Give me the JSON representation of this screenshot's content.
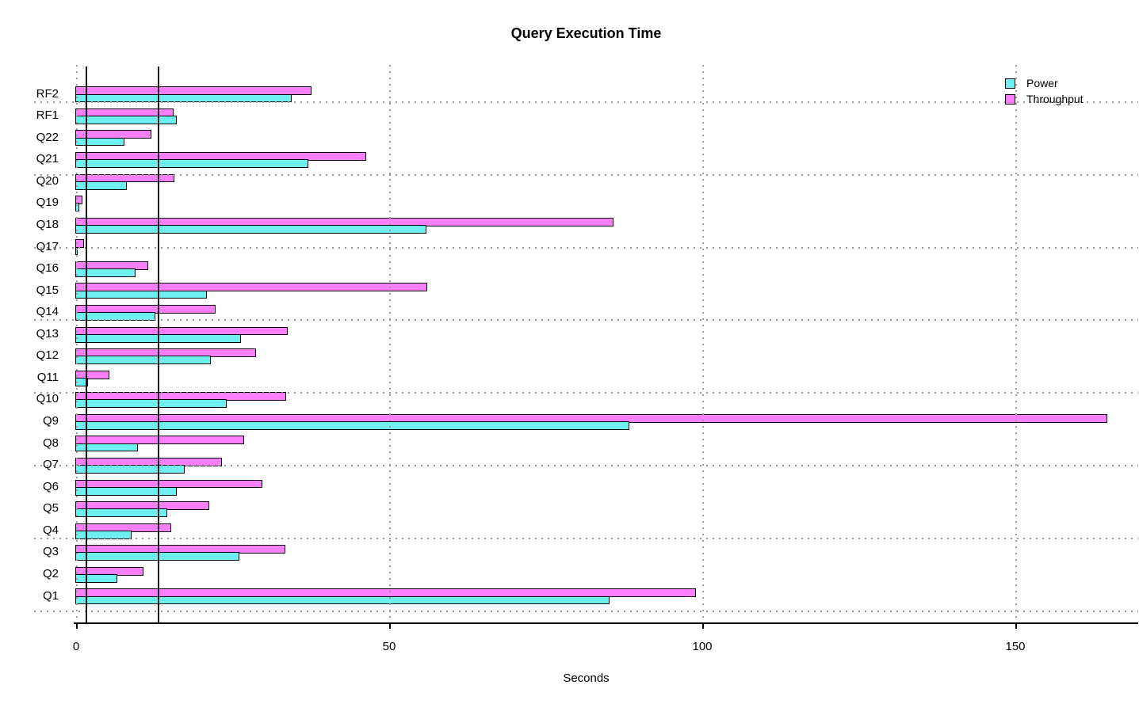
{
  "chart_data": {
    "type": "bar",
    "orientation": "horizontal",
    "title": "Query Execution Time",
    "xlabel": "Seconds",
    "x_tick_values": [
      0,
      50,
      100,
      150
    ],
    "x_tick_labels": [
      "0",
      "50",
      "100",
      "150"
    ],
    "xlim": [
      0,
      169
    ],
    "categories": [
      "RF2",
      "RF1",
      "Q22",
      "Q21",
      "Q20",
      "Q19",
      "Q18",
      "Q17",
      "Q16",
      "Q15",
      "Q14",
      "Q13",
      "Q12",
      "Q11",
      "Q10",
      "Q9",
      "Q8",
      "Q7",
      "Q6",
      "Q5",
      "Q4",
      "Q3",
      "Q2",
      "Q1"
    ],
    "series": [
      {
        "name": "Power",
        "color": "#6FF0F0",
        "values": [
          34.6,
          16.2,
          7.8,
          37.2,
          8.2,
          0.6,
          56.1,
          0.4,
          9.6,
          21.0,
          12.8,
          26.5,
          21.6,
          2.0,
          24.2,
          88.5,
          10.0,
          17.5,
          16.2,
          14.7,
          9.0,
          26.2,
          6.7,
          85.3
        ]
      },
      {
        "name": "Throughput",
        "color": "#FB7EFB",
        "values": [
          37.7,
          15.7,
          12.2,
          46.5,
          15.8,
          1.1,
          85.9,
          1.4,
          11.6,
          56.2,
          22.4,
          33.9,
          28.9,
          5.4,
          33.7,
          164.8,
          27.0,
          23.4,
          29.9,
          21.4,
          15.3,
          33.5,
          10.9,
          99.1
        ]
      }
    ],
    "bar_order_within_group_top_to_bottom": [
      "Throughput",
      "Power"
    ],
    "reference_lines_x": [
      1.5,
      13.1
    ],
    "grid": {
      "style": "dotted",
      "color": "#9a9a9a",
      "vertical_at_x_ticks": true,
      "horizontal_lines_count": 8
    },
    "legend": {
      "position": "top-right"
    }
  }
}
